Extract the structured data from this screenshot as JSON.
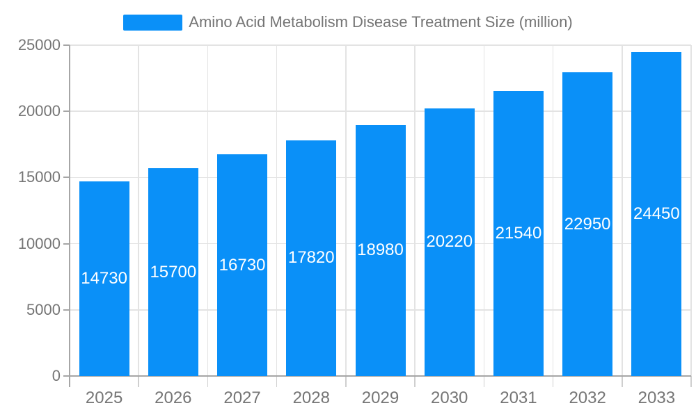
{
  "legend": {
    "label": "Amino Acid Metabolism Disease Treatment Size (million)"
  },
  "chart_data": {
    "type": "bar",
    "title": "",
    "xlabel": "",
    "ylabel": "",
    "categories": [
      "2025",
      "2026",
      "2027",
      "2028",
      "2029",
      "2030",
      "2031",
      "2032",
      "2033"
    ],
    "values": [
      14730,
      15700,
      16730,
      17820,
      18980,
      20220,
      21540,
      22950,
      24450
    ],
    "series_name": "Amino Acid Metabolism Disease Treatment Size (million)",
    "ylim": [
      0,
      25000
    ],
    "yticks": [
      0,
      5000,
      10000,
      15000,
      20000,
      25000
    ],
    "grid": true,
    "legend_position": "top",
    "value_labels": "inside-center"
  },
  "colors": {
    "bar": "#0A90F8",
    "grid": "#E3E3E3",
    "axis": "#A6A6A6",
    "text": "#757575",
    "value_label": "#FFFFFF",
    "background": "#FFFFFF"
  }
}
